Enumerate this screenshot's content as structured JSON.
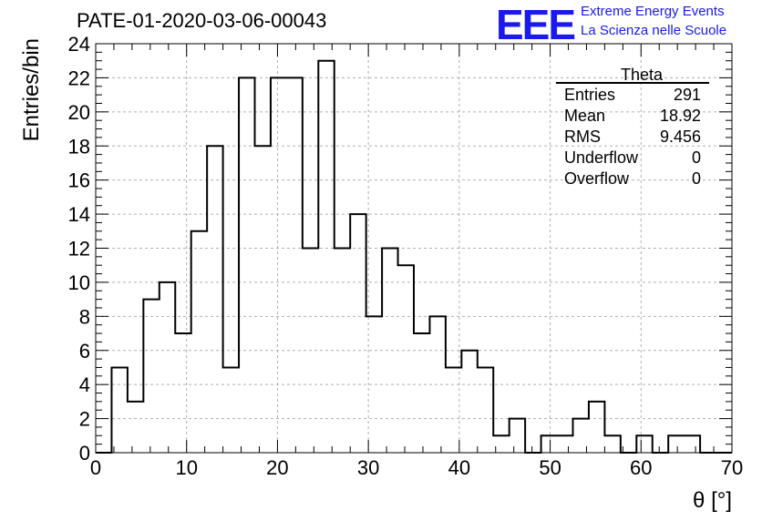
{
  "header": {
    "title": "PATE-01-2020-03-06-00043",
    "logo_text": "EEE",
    "org_line1": "Extreme Energy Events",
    "org_line2": "La Scienza nelle Scuole"
  },
  "colors": {
    "logo": "#1a1af0",
    "line": "#000000",
    "grid": "#b0b0b0"
  },
  "chart_data": {
    "type": "histogram",
    "title": "PATE-01-2020-03-06-00043",
    "xlabel": "θ [°]",
    "ylabel": "Entries/bin",
    "xlim": [
      0,
      70
    ],
    "ylim": [
      0,
      24
    ],
    "grid": true,
    "bin_width": 1.75,
    "bin_start": 0,
    "values": [
      0,
      5,
      3,
      9,
      10,
      7,
      13,
      18,
      5,
      22,
      18,
      22,
      22,
      12,
      23,
      12,
      14,
      8,
      12,
      11,
      7,
      8,
      5,
      6,
      5,
      1,
      2,
      0,
      1,
      1,
      2,
      3,
      1,
      0,
      1,
      0,
      1,
      1,
      0,
      0
    ],
    "x_ticks": [
      0,
      10,
      20,
      30,
      40,
      50,
      60,
      70
    ],
    "y_ticks": [
      0,
      2,
      4,
      6,
      8,
      10,
      12,
      14,
      16,
      18,
      20,
      22,
      24
    ],
    "stats": {
      "name": "Theta",
      "rows": [
        {
          "label": "Entries",
          "value": "291"
        },
        {
          "label": "Mean",
          "value": "18.92"
        },
        {
          "label": "RMS",
          "value": "9.456"
        },
        {
          "label": "Underflow",
          "value": "0"
        },
        {
          "label": "Overflow",
          "value": "0"
        }
      ]
    }
  }
}
